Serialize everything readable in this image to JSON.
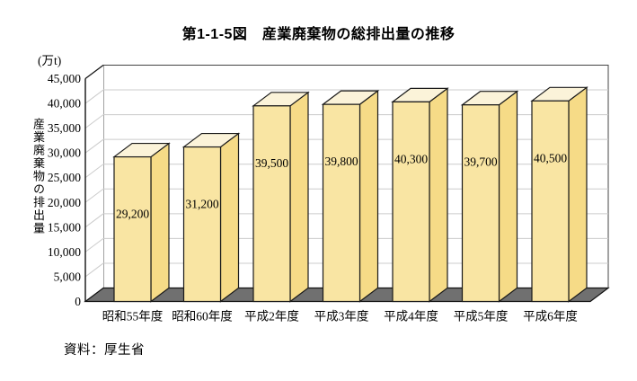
{
  "chart_data": {
    "type": "bar",
    "projection": "3d",
    "title": "第1-1-5図　産業廃棄物の総排出量の推移",
    "y_unit": "(万t)",
    "ylabel": "産業廃棄物の排出量",
    "xlabel": "",
    "categories": [
      "昭和55年度",
      "昭和60年度",
      "平成2年度",
      "平成3年度",
      "平成4年度",
      "平成5年度",
      "平成6年度"
    ],
    "values": [
      29200,
      31200,
      39500,
      39800,
      40300,
      39700,
      40500
    ],
    "value_labels": [
      "29,200",
      "31,200",
      "39,500",
      "39,800",
      "40,300",
      "39,700",
      "40,500"
    ],
    "ylim": [
      0,
      45000
    ],
    "y_tick_step": 5000,
    "y_tick_labels": [
      "0",
      "5,000",
      "10,000",
      "15,000",
      "20,000",
      "25,000",
      "30,000",
      "35,000",
      "40,000",
      "45,000"
    ],
    "grid": true,
    "legend": "none",
    "source": "資料：厚生省",
    "colors": {
      "bar_front": "#F9E5A3",
      "bar_side": "#F6DB87",
      "bar_top": "#FBF3D9",
      "bar_outline": "#1a1a1a",
      "floor": "#707070",
      "wall": "#ffffff",
      "wall_border": "#444444",
      "gridline": "#cccccc",
      "axis": "#111111",
      "text": "#000000"
    }
  }
}
